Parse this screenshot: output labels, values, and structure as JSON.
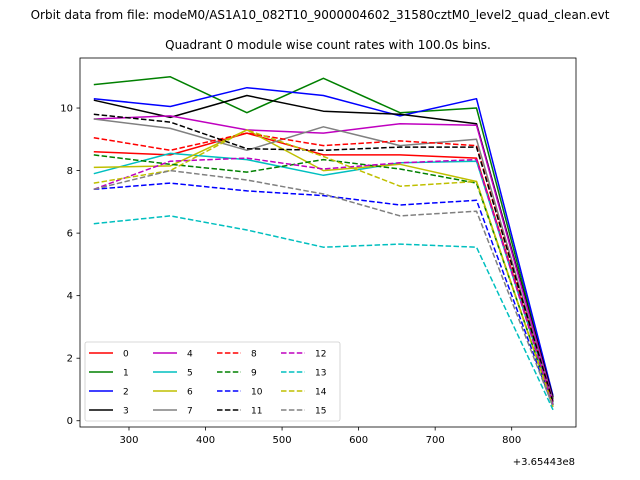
{
  "suptitle": "Orbit data from file: modeM0/AS1A10_082T10_9000004602_31580cztM0_level2_quad_clean.evt",
  "chart_data": {
    "type": "line",
    "title": "Quadrant 0 module wise count rates with 100.0s bins.",
    "xlabel": "",
    "ylabel": "",
    "x_offset_label": "+3.65443e8",
    "xlim": [
      236,
      884
    ],
    "ylim": [
      -0.2,
      11.6
    ],
    "xticks": [
      300,
      400,
      500,
      600,
      700,
      800
    ],
    "xtick_labels": [
      "300",
      "400",
      "500",
      "600",
      "700",
      "800"
    ],
    "yticks": [
      0,
      2,
      4,
      6,
      8,
      10
    ],
    "ytick_labels": [
      "0",
      "2",
      "4",
      "6",
      "8",
      "10"
    ],
    "grid": false,
    "legend_position": "lower-left",
    "x": [
      254,
      354,
      454,
      554,
      654,
      754,
      854
    ],
    "series": [
      {
        "name": "0",
        "color": "#ff0000",
        "dash": "solid",
        "values": [
          8.6,
          8.5,
          9.2,
          8.5,
          8.5,
          8.4,
          0.6
        ]
      },
      {
        "name": "1",
        "color": "#008000",
        "dash": "solid",
        "values": [
          10.75,
          11.0,
          9.85,
          10.95,
          9.85,
          10.0,
          0.7
        ]
      },
      {
        "name": "2",
        "color": "#0000ff",
        "dash": "solid",
        "values": [
          10.3,
          10.05,
          10.65,
          10.4,
          9.75,
          10.3,
          0.8
        ]
      },
      {
        "name": "3",
        "color": "#000000",
        "dash": "solid",
        "values": [
          10.25,
          9.7,
          10.4,
          9.9,
          9.8,
          9.5,
          0.75
        ]
      },
      {
        "name": "4",
        "color": "#bf00bf",
        "dash": "solid",
        "values": [
          9.65,
          9.75,
          9.3,
          9.2,
          9.5,
          9.45,
          0.65
        ]
      },
      {
        "name": "5",
        "color": "#00bfbf",
        "dash": "solid",
        "values": [
          7.9,
          8.55,
          8.35,
          7.85,
          8.25,
          8.3,
          0.55
        ]
      },
      {
        "name": "6",
        "color": "#bfbf00",
        "dash": "solid",
        "values": [
          8.1,
          8.15,
          9.3,
          8.0,
          8.2,
          7.65,
          0.5
        ]
      },
      {
        "name": "7",
        "color": "#808080",
        "dash": "solid",
        "values": [
          9.65,
          9.35,
          8.65,
          9.4,
          8.8,
          9.0,
          0.6
        ]
      },
      {
        "name": "8",
        "color": "#ff0000",
        "dash": "dashed",
        "values": [
          9.05,
          8.65,
          9.2,
          8.8,
          8.95,
          8.8,
          0.55
        ]
      },
      {
        "name": "9",
        "color": "#008000",
        "dash": "dashed",
        "values": [
          8.5,
          8.2,
          7.95,
          8.35,
          8.05,
          7.6,
          0.5
        ]
      },
      {
        "name": "10",
        "color": "#0000ff",
        "dash": "dashed",
        "values": [
          7.4,
          7.6,
          7.35,
          7.2,
          6.9,
          7.05,
          0.45
        ]
      },
      {
        "name": "11",
        "color": "#000000",
        "dash": "dashed",
        "values": [
          9.8,
          9.55,
          8.7,
          8.65,
          8.75,
          8.75,
          0.6
        ]
      },
      {
        "name": "12",
        "color": "#bf00bf",
        "dash": "dashed",
        "values": [
          7.4,
          8.3,
          8.4,
          8.05,
          8.25,
          8.35,
          0.5
        ]
      },
      {
        "name": "13",
        "color": "#00bfbf",
        "dash": "dashed",
        "values": [
          6.3,
          6.55,
          6.1,
          5.55,
          5.65,
          5.55,
          0.35
        ]
      },
      {
        "name": "14",
        "color": "#bfbf00",
        "dash": "dashed",
        "values": [
          7.6,
          8.0,
          9.3,
          8.45,
          7.5,
          7.65,
          0.45
        ]
      },
      {
        "name": "15",
        "color": "#808080",
        "dash": "dashed",
        "values": [
          7.4,
          8.0,
          7.7,
          7.25,
          6.55,
          6.7,
          0.45
        ]
      }
    ]
  }
}
